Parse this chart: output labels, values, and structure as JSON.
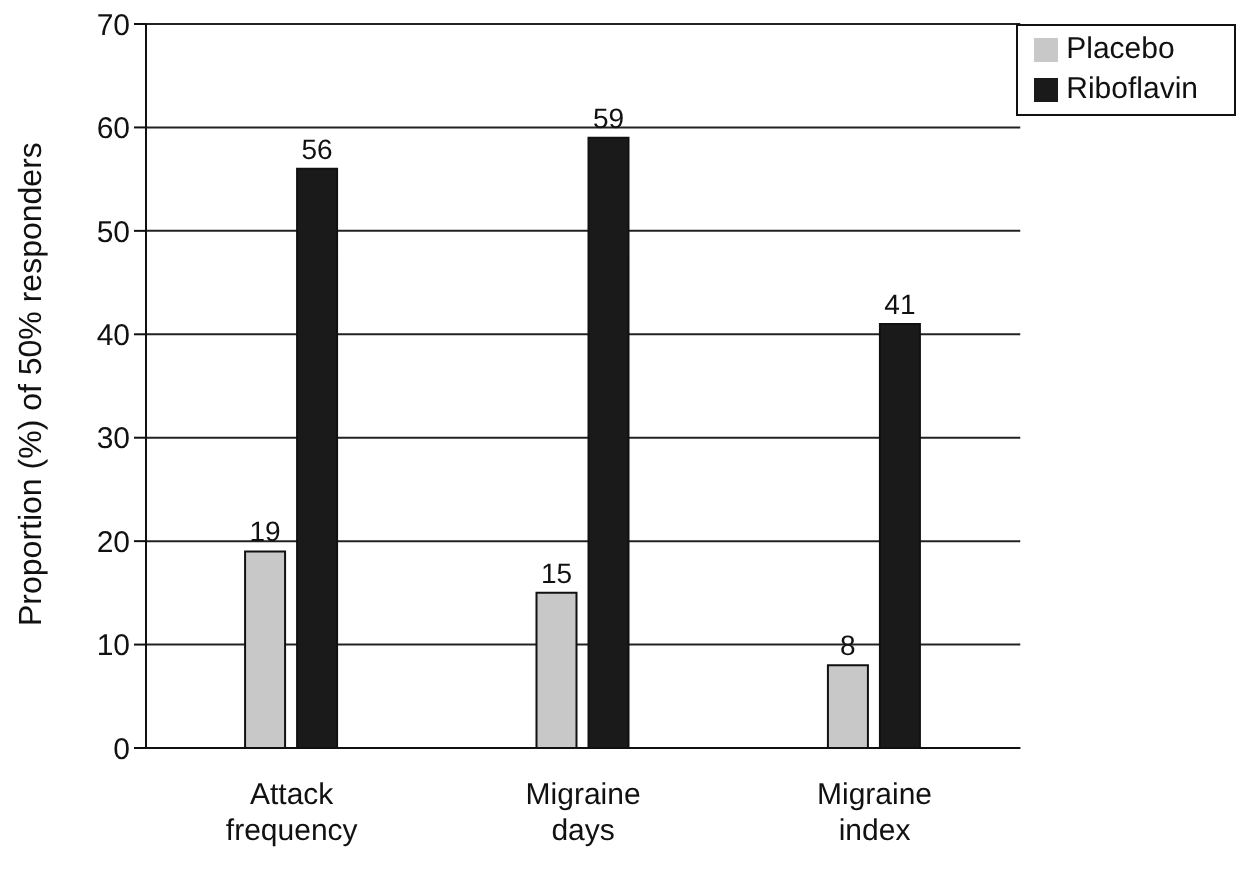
{
  "chart_data": {
    "type": "bar",
    "ylabel": "Proportion (%) of 50% responders",
    "categories": [
      "Attack frequency",
      "Migraine days",
      "Migraine index"
    ],
    "series": [
      {
        "name": "Placebo",
        "color": "#c8c8c8",
        "values": [
          19,
          15,
          8
        ]
      },
      {
        "name": "Riboflavin",
        "color": "#1a1a1a",
        "values": [
          56,
          59,
          41
        ]
      }
    ],
    "ylim": [
      0,
      70
    ],
    "yticks": [
      0,
      10,
      20,
      30,
      40,
      50,
      60,
      70
    ],
    "grid": "y",
    "legend": "top right",
    "data_labels": true
  }
}
